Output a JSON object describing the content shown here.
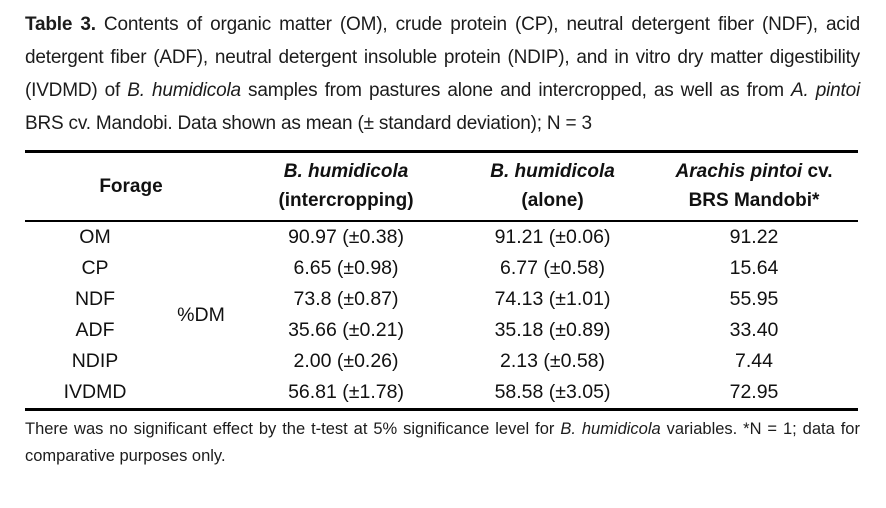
{
  "page": {
    "background_color": "#ffffff",
    "text_color": "#1c1c1c",
    "rule_color": "#000000"
  },
  "caption": {
    "segments": [
      {
        "style": "bold",
        "text": "Table 3."
      },
      {
        "style": "normal",
        "text": " Contents of organic matter (OM), crude protein (CP), neutral detergent fiber (NDF), acid detergent fiber (ADF), neutral detergent insoluble protein (NDIP), and in vitro dry matter digestibility (IVDMD) of "
      },
      {
        "style": "italic",
        "text": "B. humidicola"
      },
      {
        "style": "normal",
        "text": " samples from pastures alone and intercropped, as well as from "
      },
      {
        "style": "italic",
        "text": "A. pintoi"
      },
      {
        "style": "normal",
        "text": " BRS cv. Mandobi. Data shown as mean (± standard deviation); N = 3"
      }
    ]
  },
  "table": {
    "header": {
      "forage": "Forage",
      "col1_line1": "B. humidicola",
      "col1_line2": "(intercropping)",
      "col2_line1": "B. humidicola",
      "col2_line2": "(alone)",
      "col3_line1_species": "Arachis pintoi",
      "col3_line1_rest": " cv.",
      "col3_line2": "BRS Mandobi*"
    },
    "unit_label": "%DM",
    "rows": [
      {
        "label": "OM",
        "intercropping": "90.97 (±0.38)",
        "alone": "91.21 (±0.06)",
        "mandobi": "91.22"
      },
      {
        "label": "CP",
        "intercropping": "6.65 (±0.98)",
        "alone": "6.77 (±0.58)",
        "mandobi": "15.64"
      },
      {
        "label": "NDF",
        "intercropping": "73.8 (±0.87)",
        "alone": "74.13 (±1.01)",
        "mandobi": "55.95"
      },
      {
        "label": "ADF",
        "intercropping": "35.66 (±0.21)",
        "alone": "35.18 (±0.89)",
        "mandobi": "33.40"
      },
      {
        "label": "NDIP",
        "intercropping": "2.00 (±0.26)",
        "alone": "2.13 (±0.58)",
        "mandobi": "7.44"
      },
      {
        "label": "IVDMD",
        "intercropping": "56.81 (±1.78)",
        "alone": "58.58 (±3.05)",
        "mandobi": "72.95"
      }
    ]
  },
  "footnote": {
    "segments": [
      {
        "style": "normal",
        "text": "There was no significant effect by the t-test at 5% significance level for "
      },
      {
        "style": "italic",
        "text": "B. humidicola"
      },
      {
        "style": "normal",
        "text": " variables. *N = 1; data for comparative purposes only."
      }
    ]
  }
}
